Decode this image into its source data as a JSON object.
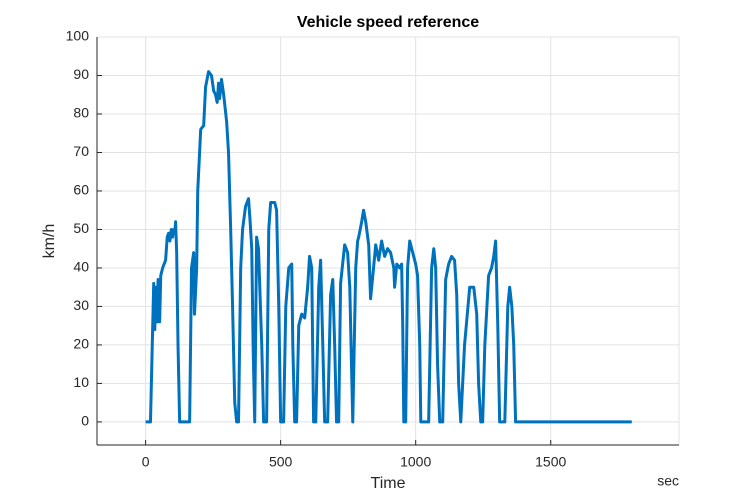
{
  "chart_data": {
    "type": "line",
    "title": "Vehicle speed reference",
    "xlabel": "Time",
    "ylabel": "km/h",
    "x_unit": "sec",
    "x": [
      0,
      18,
      30,
      34,
      38,
      42,
      46,
      52,
      56,
      63,
      74,
      80,
      85,
      90,
      95,
      100,
      104,
      108,
      111,
      115,
      120,
      126,
      163,
      170,
      178,
      181,
      189,
      193,
      204,
      215,
      222,
      233,
      244,
      252,
      259,
      265,
      270,
      274,
      281,
      289,
      300,
      307,
      315,
      322,
      330,
      337,
      344,
      352,
      359,
      370,
      381,
      387,
      393,
      398,
      404,
      411,
      418,
      430,
      437,
      448,
      456,
      463,
      478,
      485,
      493,
      500,
      511,
      519,
      530,
      541,
      545,
      552,
      559,
      567,
      578,
      589,
      600,
      607,
      615,
      622,
      630,
      641,
      648,
      656,
      663,
      674,
      685,
      693,
      700,
      707,
      715,
      722,
      737,
      748,
      756,
      767,
      778,
      785,
      789,
      800,
      807,
      815,
      826,
      833,
      844,
      852,
      863,
      874,
      885,
      896,
      907,
      919,
      922,
      930,
      941,
      948,
      952,
      956,
      963,
      970,
      978,
      989,
      1000,
      1007,
      1015,
      1019,
      1048,
      1059,
      1067,
      1074,
      1081,
      1089,
      1100,
      1111,
      1122,
      1133,
      1144,
      1152,
      1159,
      1167,
      1181,
      1200,
      1215,
      1226,
      1233,
      1241,
      1248,
      1256,
      1270,
      1281,
      1289,
      1296,
      1304,
      1311,
      1330,
      1341,
      1348,
      1356,
      1363,
      1370,
      1800
    ],
    "values": [
      0,
      0,
      36,
      24,
      35,
      26,
      37,
      26,
      38,
      40,
      42,
      48,
      49,
      47,
      50,
      48,
      50,
      49,
      52,
      44,
      20,
      0,
      0,
      40,
      44,
      28,
      40,
      60,
      76,
      77,
      87,
      91,
      90,
      86,
      85,
      83,
      88,
      84,
      89,
      85,
      78,
      70,
      50,
      30,
      5,
      0,
      0,
      40,
      50,
      56,
      58,
      52,
      45,
      20,
      0,
      48,
      45,
      20,
      0,
      0,
      50,
      57,
      57,
      55,
      30,
      0,
      0,
      30,
      40,
      41,
      20,
      0,
      0,
      25,
      28,
      27,
      35,
      43,
      40,
      0,
      0,
      35,
      42,
      20,
      0,
      0,
      33,
      37,
      20,
      0,
      0,
      36,
      46,
      44,
      35,
      0,
      40,
      47,
      48,
      52,
      55,
      52,
      46,
      32,
      40,
      46,
      42,
      47,
      43,
      45,
      44,
      40,
      35,
      41,
      40,
      41,
      25,
      0,
      0,
      40,
      47,
      44,
      41,
      38,
      20,
      0,
      0,
      40,
      45,
      40,
      15,
      0,
      0,
      37,
      41,
      43,
      42,
      33,
      10,
      0,
      20,
      35,
      35,
      28,
      10,
      0,
      0,
      20,
      38,
      40,
      43,
      47,
      25,
      0,
      0,
      30,
      35,
      30,
      20,
      0,
      0
    ],
    "color": "#0072bd",
    "xlim": [
      -180,
      1975
    ],
    "ylim": [
      -6,
      100
    ],
    "xticks": [
      0,
      500,
      1000,
      1500
    ],
    "yticks": [
      0,
      10,
      20,
      30,
      40,
      50,
      60,
      70,
      80,
      90,
      100
    ],
    "grid": true
  }
}
